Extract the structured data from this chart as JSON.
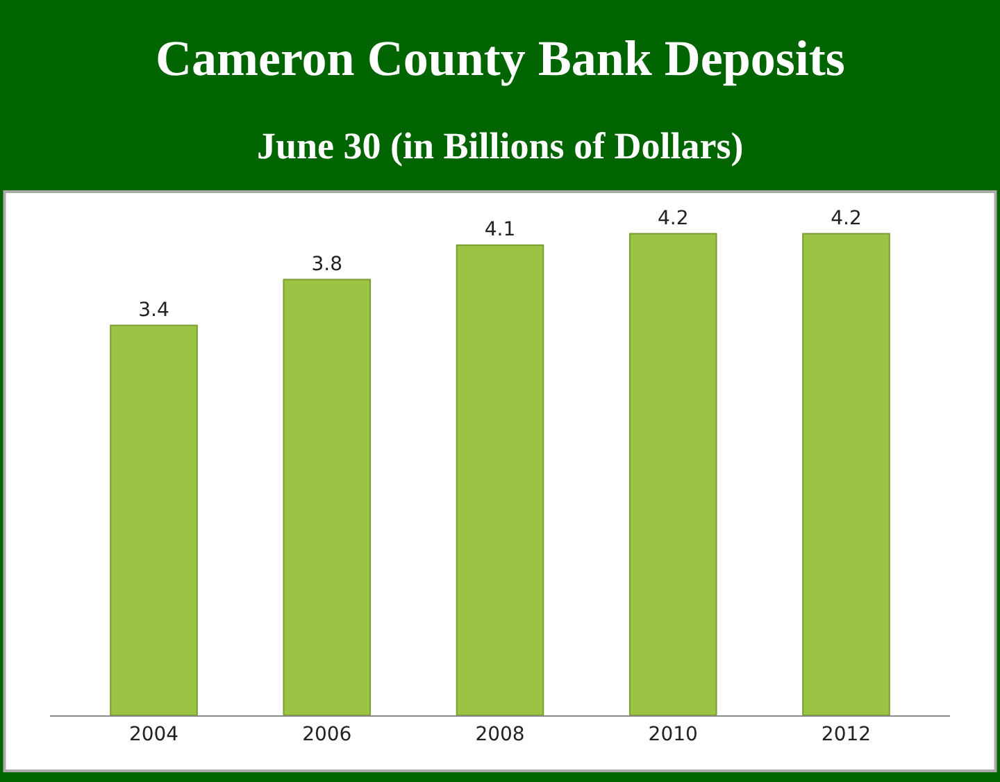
{
  "chart_data": {
    "type": "bar",
    "title": "Cameron County Bank Deposits",
    "subtitle": "June 30 (in Billions of Dollars)",
    "categories": [
      "2004",
      "2006",
      "2008",
      "2010",
      "2012"
    ],
    "values": [
      3.4,
      3.8,
      4.1,
      4.2,
      4.2
    ],
    "color": "#9cc444",
    "data_labels": true
  }
}
